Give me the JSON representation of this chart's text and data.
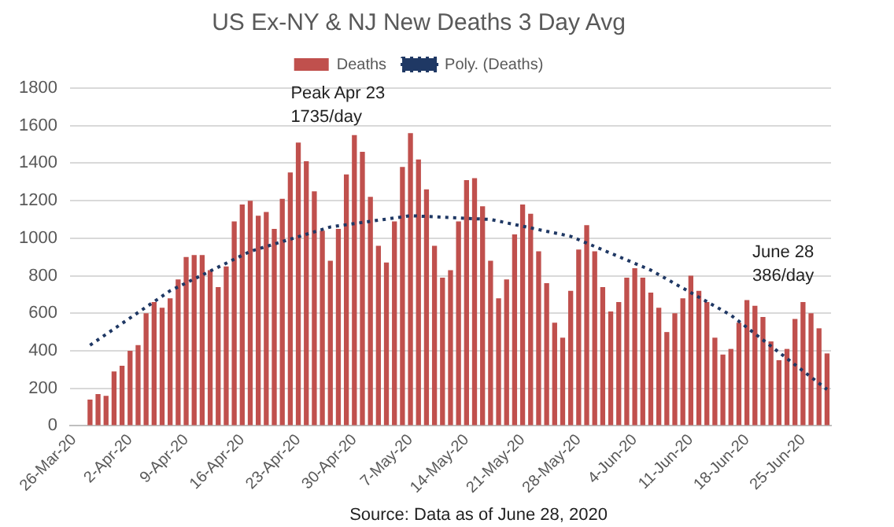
{
  "chart_data": {
    "type": "bar",
    "title": "US Ex-NY & NJ New Deaths 3 Day Avg",
    "categories": [
      "26-Mar-20",
      null,
      null,
      null,
      null,
      null,
      null,
      "2-Apr-20",
      null,
      null,
      null,
      null,
      null,
      null,
      "9-Apr-20",
      null,
      null,
      null,
      null,
      null,
      null,
      "16-Apr-20",
      null,
      null,
      null,
      null,
      null,
      null,
      "23-Apr-20",
      null,
      null,
      null,
      null,
      null,
      null,
      "30-Apr-20",
      null,
      null,
      null,
      null,
      null,
      null,
      "7-May-20",
      null,
      null,
      null,
      null,
      null,
      null,
      "14-May-20",
      null,
      null,
      null,
      null,
      null,
      null,
      "21-May-20",
      null,
      null,
      null,
      null,
      null,
      null,
      "28-May-20",
      null,
      null,
      null,
      null,
      null,
      null,
      "4-Jun-20",
      null,
      null,
      null,
      null,
      null,
      null,
      "11-Jun-20",
      null,
      null,
      null,
      null,
      null,
      null,
      "18-Jun-20",
      null,
      null,
      null,
      null,
      null,
      null,
      "25-Jun-20",
      null,
      null,
      null
    ],
    "series": [
      {
        "name": "Deaths",
        "color": "#c0504d",
        "values": [
          null,
          null,
          140,
          170,
          160,
          290,
          320,
          400,
          430,
          600,
          660,
          630,
          680,
          780,
          900,
          910,
          910,
          830,
          740,
          850,
          1090,
          1180,
          1200,
          1120,
          1140,
          1050,
          1210,
          1350,
          1510,
          1410,
          1250,
          1040,
          880,
          1050,
          1340,
          1550,
          1460,
          1220,
          960,
          870,
          1090,
          1380,
          1560,
          1420,
          1260,
          960,
          790,
          830,
          1090,
          1310,
          1320,
          1170,
          880,
          680,
          780,
          1020,
          1180,
          1130,
          930,
          760,
          550,
          470,
          720,
          940,
          1070,
          930,
          740,
          610,
          660,
          790,
          840,
          790,
          710,
          630,
          500,
          600,
          680,
          800,
          720,
          660,
          470,
          380,
          410,
          550,
          670,
          640,
          580,
          450,
          350,
          410,
          570,
          660,
          600,
          520,
          386
        ]
      },
      {
        "name": "Poly. (Deaths)",
        "type": "line",
        "color": "#1f3864",
        "line_style": "dotted",
        "marker": "none",
        "values": [
          null,
          null,
          430,
          null,
          null,
          null,
          null,
          null,
          null,
          null,
          null,
          null,
          720,
          null,
          null,
          null,
          null,
          null,
          null,
          null,
          null,
          null,
          930,
          null,
          null,
          null,
          null,
          null,
          null,
          null,
          null,
          null,
          1060,
          null,
          null,
          null,
          null,
          null,
          null,
          null,
          null,
          null,
          1120,
          null,
          null,
          null,
          null,
          null,
          null,
          null,
          null,
          null,
          1100,
          null,
          null,
          null,
          null,
          null,
          null,
          null,
          null,
          null,
          1010,
          null,
          null,
          null,
          null,
          null,
          null,
          null,
          null,
          null,
          830,
          null,
          null,
          null,
          null,
          null,
          null,
          null,
          null,
          null,
          590,
          null,
          null,
          null,
          null,
          null,
          null,
          null,
          null,
          null,
          null,
          null,
          194
        ]
      }
    ],
    "ylim": [
      0,
      1800
    ],
    "yticks": [
      0,
      200,
      400,
      600,
      800,
      1000,
      1200,
      1400,
      1600,
      1800
    ],
    "grid": "y",
    "legend": "top",
    "annotations": [
      "Peak Apr 23\n1735/day",
      "June 28\n386/day",
      "Source: Data as of June 28, 2020"
    ]
  }
}
